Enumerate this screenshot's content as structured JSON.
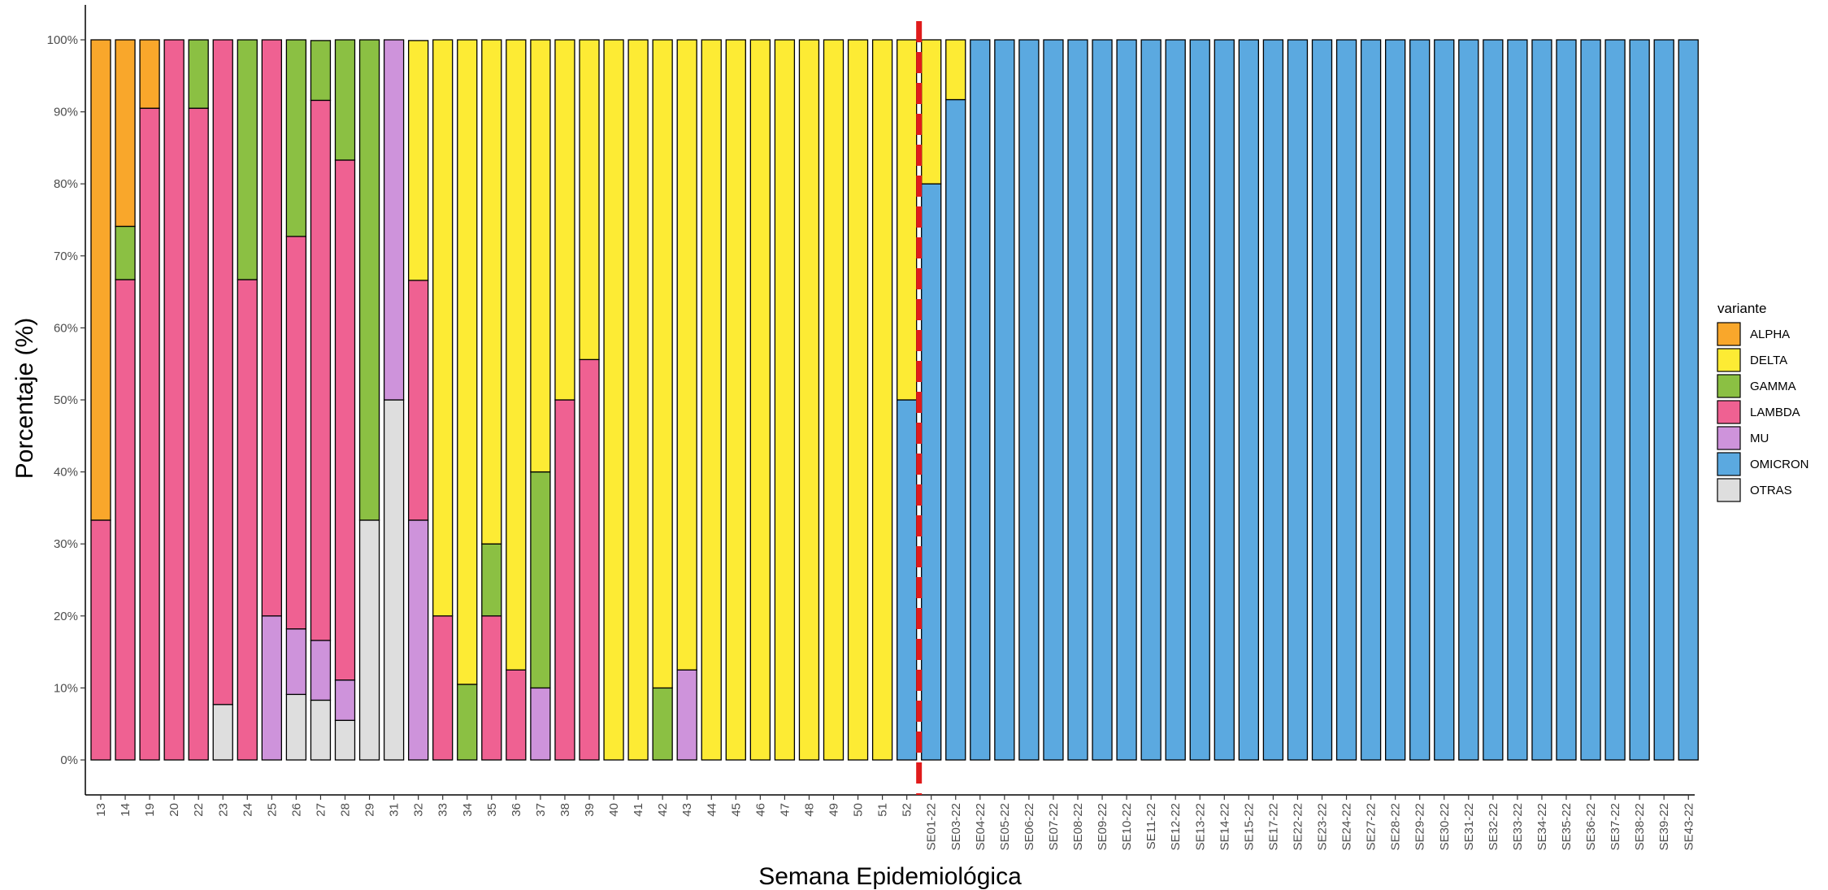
{
  "chart_data": {
    "type": "bar",
    "stacked": true,
    "percent": true,
    "xlabel": "Semana Epidemiológica",
    "ylabel": "Porcentaje (%)",
    "ylim": [
      0,
      100
    ],
    "yticks": [
      "0%",
      "10%",
      "20%",
      "30%",
      "40%",
      "50%",
      "60%",
      "70%",
      "80%",
      "90%",
      "100%"
    ],
    "grid": false,
    "legend": {
      "title": "variante",
      "placement": "right",
      "entries": [
        "ALPHA",
        "DELTA",
        "GAMMA",
        "LAMBDA",
        "MU",
        "OMICRON",
        "OTRAS"
      ]
    },
    "colors": {
      "ALPHA": "#F9A72B",
      "DELTA": "#FDEB34",
      "GAMMA": "#8BC043",
      "LAMBDA": "#EF6192",
      "MU": "#CE93DB",
      "OMICRON": "#5BA9E0",
      "OTRAS": "#DEDEDE"
    },
    "stack_order_bottom_to_top": [
      "OTRAS",
      "OMICRON",
      "MU",
      "LAMBDA",
      "GAMMA",
      "DELTA",
      "ALPHA"
    ],
    "annotation": {
      "type": "vertical-dashed-line",
      "color": "#E01B1B",
      "between": [
        "52",
        "SE01-22"
      ]
    },
    "categories": [
      "13",
      "14",
      "19",
      "20",
      "22",
      "23",
      "24",
      "25",
      "26",
      "27",
      "28",
      "29",
      "31",
      "32",
      "33",
      "34",
      "35",
      "36",
      "37",
      "38",
      "39",
      "40",
      "41",
      "42",
      "43",
      "44",
      "45",
      "46",
      "47",
      "48",
      "49",
      "50",
      "51",
      "52",
      "SE01-22",
      "SE03-22",
      "SE04-22",
      "SE05-22",
      "SE06-22",
      "SE07-22",
      "SE08-22",
      "SE09-22",
      "SE10-22",
      "SE11-22",
      "SE12-22",
      "SE13-22",
      "SE14-22",
      "SE15-22",
      "SE17-22",
      "SE22-22",
      "SE23-22",
      "SE24-22",
      "SE27-22",
      "SE28-22",
      "SE29-22",
      "SE30-22",
      "SE31-22",
      "SE32-22",
      "SE33-22",
      "SE34-22",
      "SE35-22",
      "SE36-22",
      "SE37-22",
      "SE38-22",
      "SE39-22",
      "SE43-22"
    ],
    "series": [
      {
        "name": "ALPHA",
        "values": [
          66.7,
          25.9,
          9.5,
          0,
          0,
          0,
          0,
          0,
          0,
          0,
          0,
          0,
          0,
          0,
          0,
          0,
          0,
          0,
          0,
          0,
          0,
          0,
          0,
          0,
          0,
          0,
          0,
          0,
          0,
          0,
          0,
          0,
          0,
          0,
          0,
          0,
          0,
          0,
          0,
          0,
          0,
          0,
          0,
          0,
          0,
          0,
          0,
          0,
          0,
          0,
          0,
          0,
          0,
          0,
          0,
          0,
          0,
          0,
          0,
          0,
          0,
          0,
          0,
          0,
          0,
          0
        ]
      },
      {
        "name": "DELTA",
        "values": [
          0,
          0,
          0,
          0,
          0,
          0,
          0,
          0,
          0,
          0,
          0,
          0,
          0,
          33.3,
          80,
          89.5,
          70,
          87.5,
          60,
          50,
          44.4,
          100,
          100,
          90,
          87.5,
          100,
          100,
          100,
          100,
          100,
          100,
          100,
          100,
          50,
          20,
          8.3,
          0,
          0,
          0,
          0,
          0,
          0,
          0,
          0,
          0,
          0,
          0,
          0,
          0,
          0,
          0,
          0,
          0,
          0,
          0,
          0,
          0,
          0,
          0,
          0,
          0,
          0,
          0,
          0,
          0,
          0
        ]
      },
      {
        "name": "GAMMA",
        "values": [
          0,
          7.4,
          0,
          0,
          9.5,
          0,
          33.3,
          0,
          27.3,
          8.3,
          16.7,
          66.7,
          0,
          0,
          0,
          10.5,
          10,
          0,
          30,
          0,
          0,
          0,
          0,
          10,
          0,
          0,
          0,
          0,
          0,
          0,
          0,
          0,
          0,
          0,
          0,
          0,
          0,
          0,
          0,
          0,
          0,
          0,
          0,
          0,
          0,
          0,
          0,
          0,
          0,
          0,
          0,
          0,
          0,
          0,
          0,
          0,
          0,
          0,
          0,
          0,
          0,
          0,
          0,
          0,
          0,
          0
        ]
      },
      {
        "name": "LAMBDA",
        "values": [
          33.3,
          66.7,
          90.5,
          100,
          90.5,
          92.3,
          66.7,
          80,
          54.5,
          75,
          72.2,
          0,
          0,
          33.3,
          20,
          0,
          20,
          12.5,
          0,
          50,
          55.6,
          0,
          0,
          0,
          0,
          0,
          0,
          0,
          0,
          0,
          0,
          0,
          0,
          0,
          0,
          0,
          0,
          0,
          0,
          0,
          0,
          0,
          0,
          0,
          0,
          0,
          0,
          0,
          0,
          0,
          0,
          0,
          0,
          0,
          0,
          0,
          0,
          0,
          0,
          0,
          0,
          0,
          0,
          0,
          0,
          0
        ]
      },
      {
        "name": "MU",
        "values": [
          0,
          0,
          0,
          0,
          0,
          0,
          0,
          20,
          9.1,
          8.3,
          5.6,
          0,
          50,
          33.3,
          0,
          0,
          0,
          0,
          10,
          0,
          0,
          0,
          0,
          0,
          12.5,
          0,
          0,
          0,
          0,
          0,
          0,
          0,
          0,
          0,
          0,
          0,
          0,
          0,
          0,
          0,
          0,
          0,
          0,
          0,
          0,
          0,
          0,
          0,
          0,
          0,
          0,
          0,
          0,
          0,
          0,
          0,
          0,
          0,
          0,
          0,
          0,
          0,
          0,
          0,
          0,
          0
        ]
      },
      {
        "name": "OMICRON",
        "values": [
          0,
          0,
          0,
          0,
          0,
          0,
          0,
          0,
          0,
          0,
          0,
          0,
          0,
          0,
          0,
          0,
          0,
          0,
          0,
          0,
          0,
          0,
          0,
          0,
          0,
          0,
          0,
          0,
          0,
          0,
          0,
          0,
          0,
          50,
          80,
          91.7,
          100,
          100,
          100,
          100,
          100,
          100,
          100,
          100,
          100,
          100,
          100,
          100,
          100,
          100,
          100,
          100,
          100,
          100,
          100,
          100,
          100,
          100,
          100,
          100,
          100,
          100,
          100,
          100,
          100,
          100
        ]
      },
      {
        "name": "OTRAS",
        "values": [
          0,
          0,
          0,
          0,
          0,
          7.7,
          0,
          0,
          9.1,
          8.3,
          5.5,
          33.3,
          50,
          0,
          0,
          0,
          0,
          0,
          0,
          0,
          0,
          0,
          0,
          0,
          0,
          0,
          0,
          0,
          0,
          0,
          0,
          0,
          0,
          0,
          0,
          0,
          0,
          0,
          0,
          0,
          0,
          0,
          0,
          0,
          0,
          0,
          0,
          0,
          0,
          0,
          0,
          0,
          0,
          0,
          0,
          0,
          0,
          0,
          0,
          0,
          0,
          0,
          0,
          0,
          0,
          0
        ]
      }
    ]
  }
}
